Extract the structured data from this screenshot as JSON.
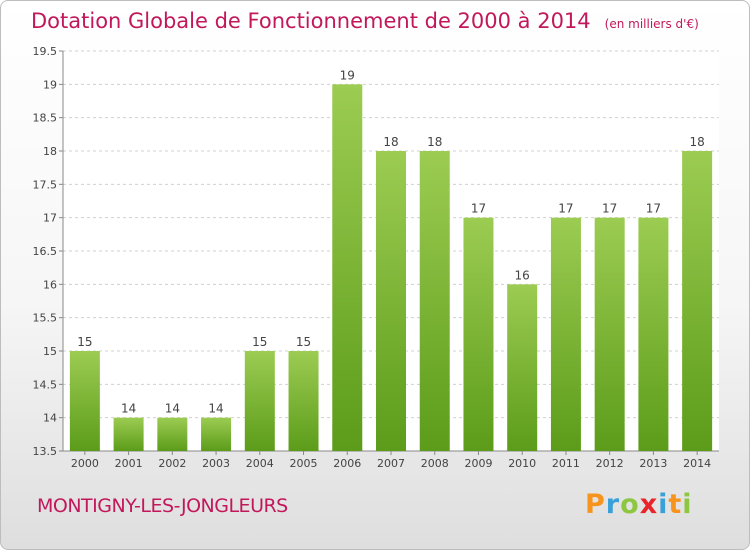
{
  "header": {
    "title": "Dotation Globale de Fonctionnement de 2000 à 2014",
    "unit": "(en milliers d'€)"
  },
  "footer": {
    "commune": "MONTIGNY-LES-JONGLEURS",
    "logo_letters": [
      "P",
      "r",
      "o",
      "x",
      "i",
      "t",
      "i"
    ],
    "logo_colors": [
      "#f7941d",
      "#3aa0d8",
      "#8dc63f",
      "#e8232a",
      "#3aa0d8",
      "#f7941d",
      "#8dc63f"
    ]
  },
  "colors": {
    "title": "#c2185b",
    "bar_light": "#9ccc52",
    "bar_dark": "#5c9c1a",
    "grid": "#d0d0d0"
  },
  "chart_data": {
    "type": "bar",
    "categories": [
      "2000",
      "2001",
      "2002",
      "2003",
      "2004",
      "2005",
      "2006",
      "2007",
      "2008",
      "2009",
      "2010",
      "2011",
      "2012",
      "2013",
      "2014"
    ],
    "values": [
      15,
      14,
      14,
      14,
      15,
      15,
      19,
      18,
      18,
      17,
      16,
      17,
      17,
      17,
      18
    ],
    "value_labels": [
      "15",
      "14",
      "14",
      "14",
      "15",
      "15",
      "19",
      "18",
      "18",
      "17",
      "16",
      "17",
      "17",
      "17",
      "18"
    ],
    "yticks": [
      "13.5",
      "14",
      "14.5",
      "15",
      "15.5",
      "16",
      "16.5",
      "17",
      "17.5",
      "18",
      "18.5",
      "19",
      "19.5"
    ],
    "ylim": [
      13.5,
      19.5
    ],
    "grid": true,
    "legend": "none"
  }
}
